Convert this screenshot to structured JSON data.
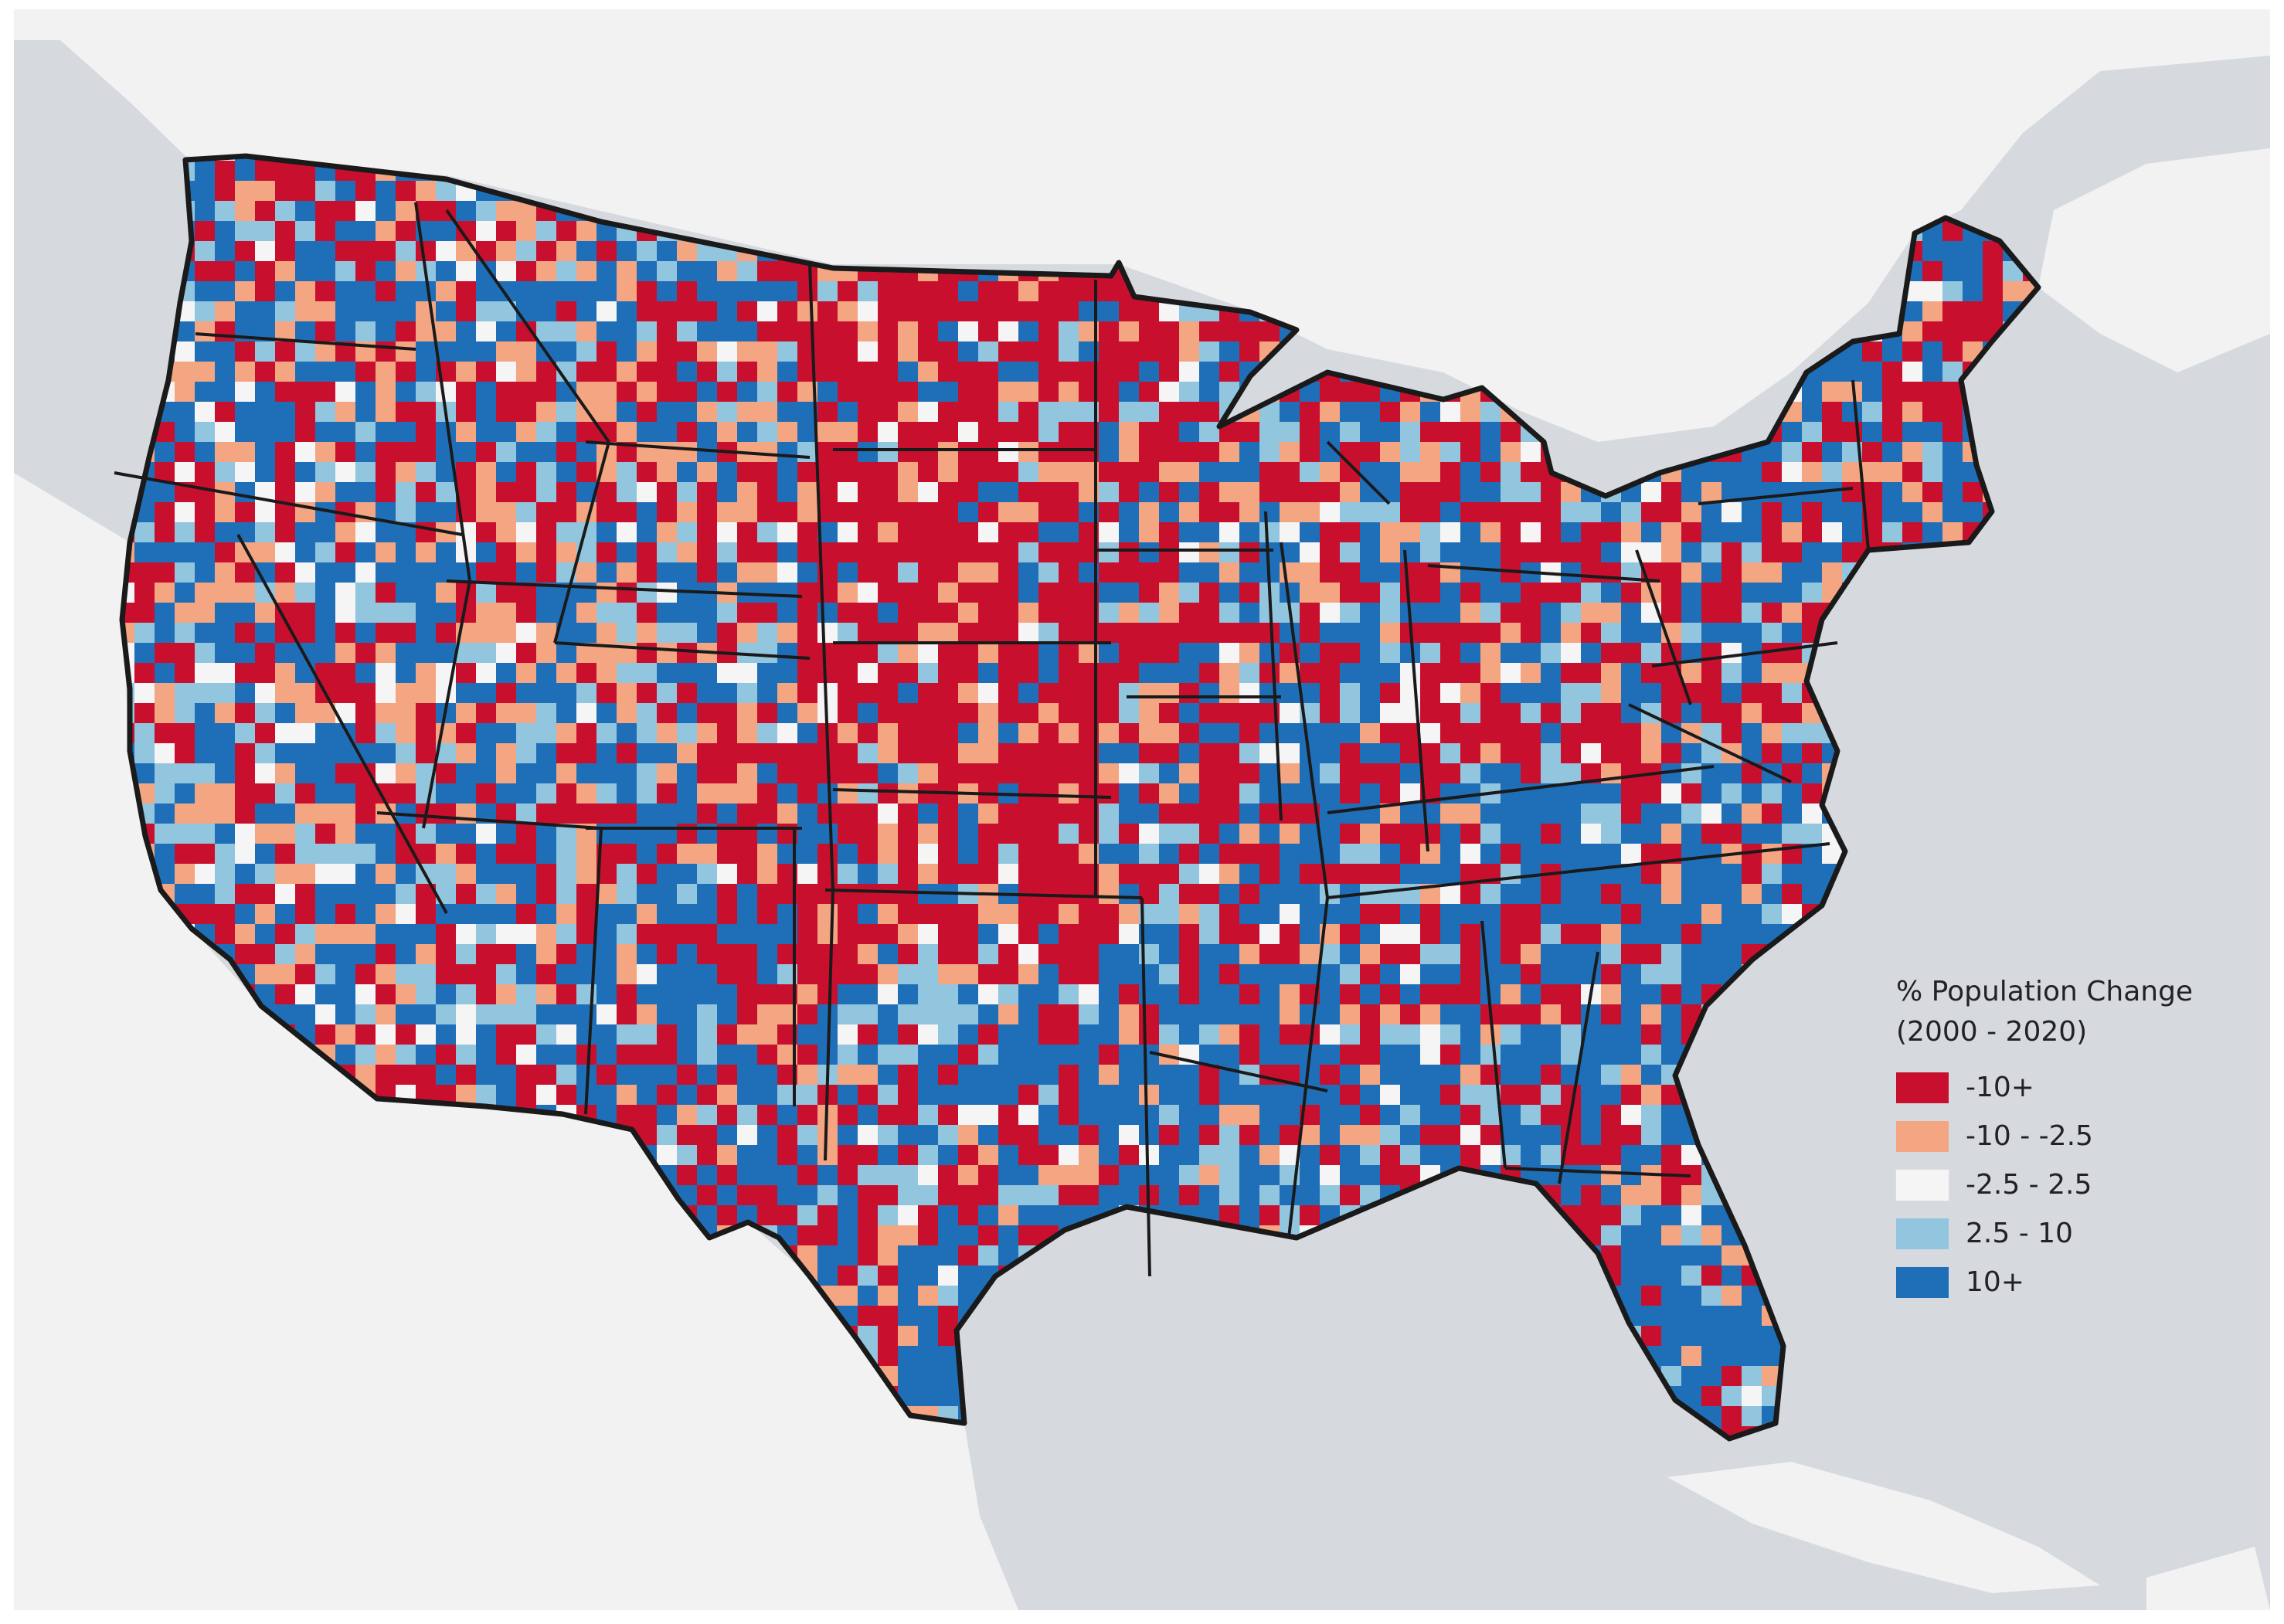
{
  "legend": {
    "title_line1": "% Population Change",
    "title_line2": "(2000 - 2020)",
    "classes": [
      {
        "label": "-10+",
        "color": "#c8102e"
      },
      {
        "label": "-10 - -2.5",
        "color": "#f4a582"
      },
      {
        "label": "-2.5 - 2.5",
        "color": "#f5f5f5"
      },
      {
        "label": "2.5 - 10",
        "color": "#92c5de"
      },
      {
        "label": "10+",
        "color": "#1f6fb8"
      }
    ]
  },
  "colors": {
    "water": "#d6dadf",
    "land": "#f2f2f2",
    "border": "#1a1a1a"
  }
}
